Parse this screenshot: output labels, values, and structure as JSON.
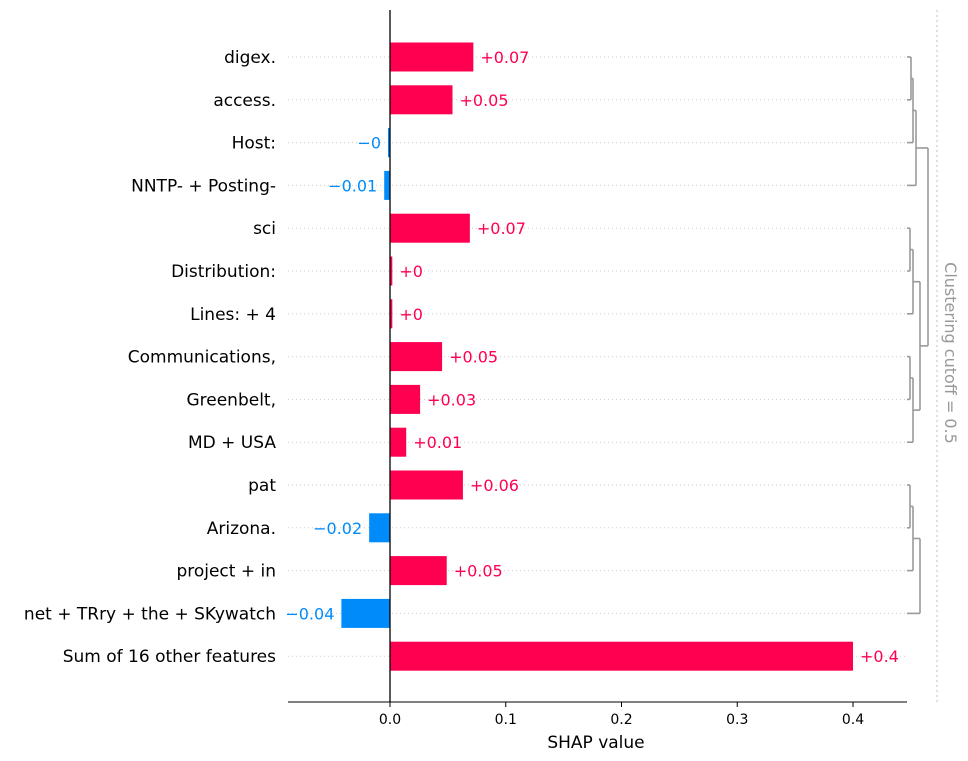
{
  "chart_data": {
    "type": "bar",
    "orientation": "horizontal",
    "xlabel": "SHAP value",
    "xlim": [
      -0.089,
      0.448
    ],
    "xticks": [
      "0.0",
      "0.1",
      "0.2",
      "0.3",
      "0.4"
    ],
    "xtick_values": [
      0.0,
      0.1,
      0.2,
      0.3,
      0.4
    ],
    "features": [
      {
        "label": "digex.",
        "value": 0.072,
        "text": "+0.07"
      },
      {
        "label": "access.",
        "value": 0.054,
        "text": "+0.05"
      },
      {
        "label": "Host:",
        "value": -0.001,
        "text": "−0"
      },
      {
        "label": "NNTP- + Posting-",
        "value": -0.005,
        "text": "−0.01"
      },
      {
        "label": "sci",
        "value": 0.069,
        "text": "+0.07"
      },
      {
        "label": "Distribution:",
        "value": 0.002,
        "text": "+0"
      },
      {
        "label": "Lines: + 4",
        "value": 0.002,
        "text": "+0"
      },
      {
        "label": "Communications,",
        "value": 0.045,
        "text": "+0.05"
      },
      {
        "label": "Greenbelt,",
        "value": 0.026,
        "text": "+0.03"
      },
      {
        "label": "MD + USA",
        "value": 0.014,
        "text": "+0.01"
      },
      {
        "label": "pat",
        "value": 0.063,
        "text": "+0.06"
      },
      {
        "label": "Arizona.",
        "value": -0.018,
        "text": "−0.02"
      },
      {
        "label": "project + in",
        "value": 0.049,
        "text": "+0.05"
      },
      {
        "label": "net + TRry + the + SKywatch",
        "value": -0.042,
        "text": "−0.04"
      },
      {
        "label": "Sum of 16 other features",
        "value": 0.4,
        "text": "+0.4"
      }
    ],
    "clustering_label": "Clustering cutoff = 0.5",
    "colors": {
      "positive": "#ff0051",
      "negative": "#008bfb",
      "cluster": "#999999"
    }
  }
}
